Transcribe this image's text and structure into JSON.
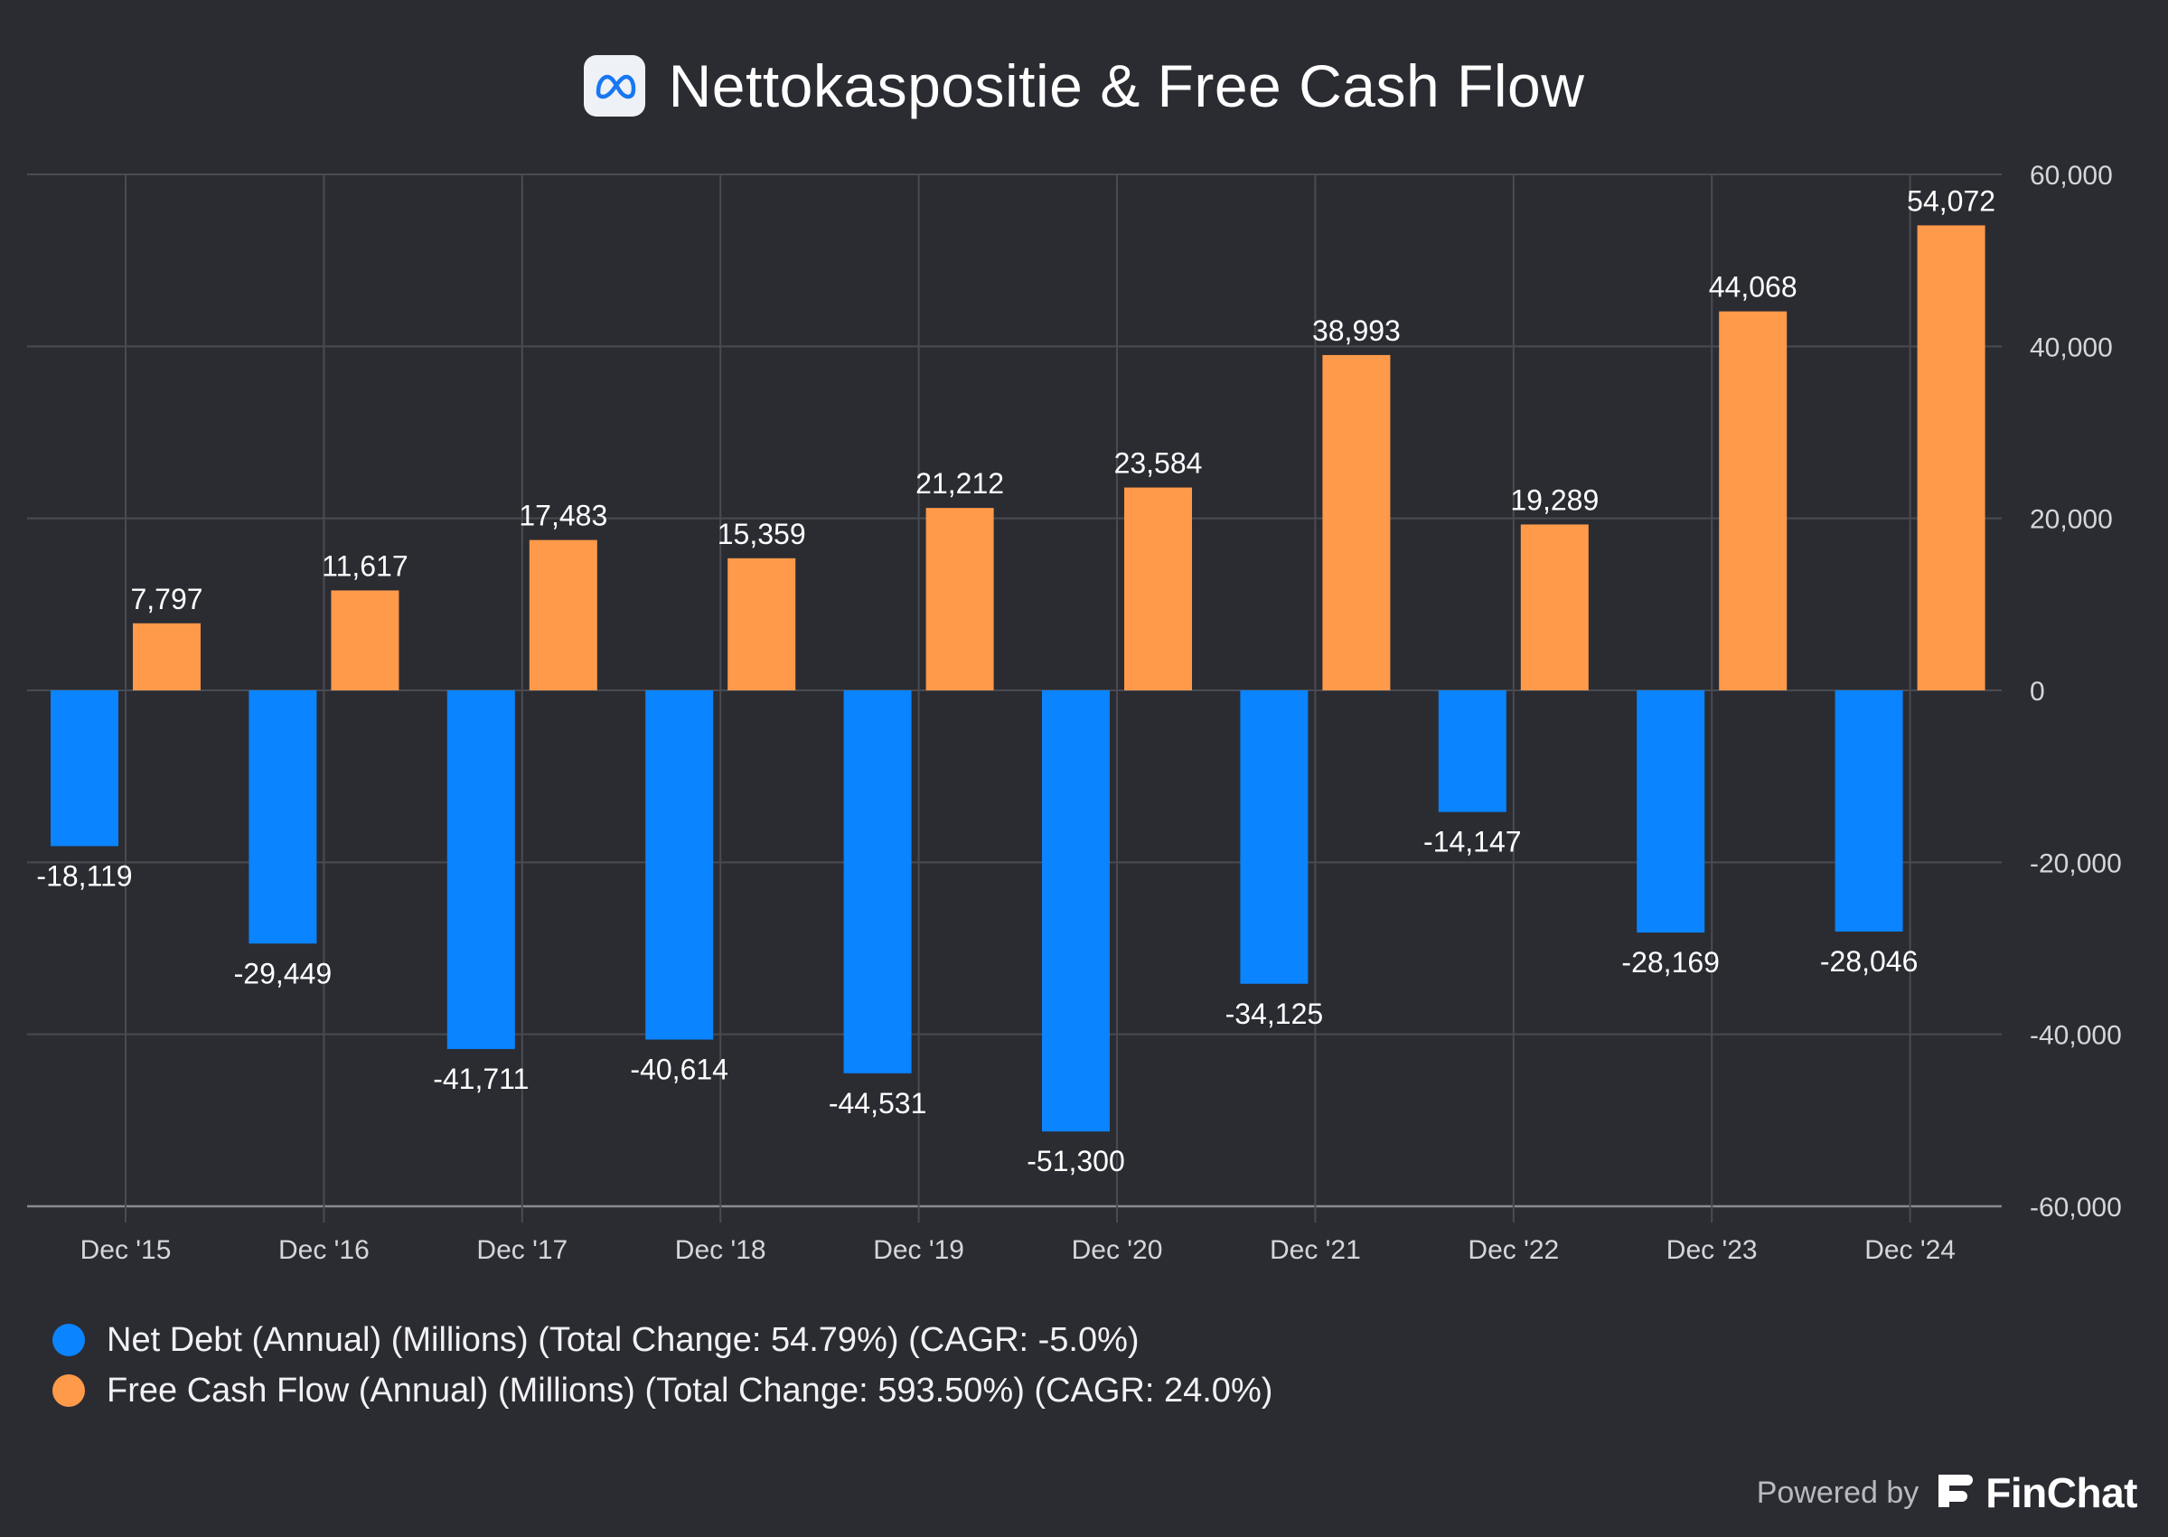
{
  "header": {
    "title": "Nettokaspositie & Free Cash Flow",
    "logo_icon": "meta-logo-icon"
  },
  "chart_data": {
    "type": "bar",
    "title": "Nettokaspositie & Free Cash Flow",
    "categories": [
      "Dec '15",
      "Dec '16",
      "Dec '17",
      "Dec '18",
      "Dec '19",
      "Dec '20",
      "Dec '21",
      "Dec '22",
      "Dec '23",
      "Dec '24"
    ],
    "series": [
      {
        "name": "Net Debt (Annual) (Millions) (Total Change: 54.79%) (CAGR: -5.0%)",
        "color": "#0a84ff",
        "values": [
          -18119,
          -29449,
          -41711,
          -40614,
          -44531,
          -51300,
          -34125,
          -14147,
          -28169,
          -28046
        ],
        "labels": [
          "-18,119",
          "-29,449",
          "-41,711",
          "-40,614",
          "-44,531",
          "-51,300",
          "-34,125",
          "-14,147",
          "-28,169",
          "-28,046"
        ]
      },
      {
        "name": "Free Cash Flow (Annual) (Millions) (Total Change: 593.50%) (CAGR: 24.0%)",
        "color": "#ff9a4a",
        "values": [
          7797,
          11617,
          17483,
          15359,
          21212,
          23584,
          38993,
          19289,
          44068,
          54072
        ],
        "labels": [
          "7,797",
          "11,617",
          "17,483",
          "15,359",
          "21,212",
          "23,584",
          "38,993",
          "19,289",
          "44,068",
          "54,072"
        ]
      }
    ],
    "yaxis": {
      "position": "right",
      "ylim": [
        -60000,
        60000
      ],
      "ticks": [
        60000,
        40000,
        20000,
        0,
        -20000,
        -40000,
        -60000
      ],
      "tick_labels": [
        "60,000",
        "40,000",
        "20,000",
        "0",
        "-20,000",
        "-40,000",
        "-60,000"
      ]
    },
    "grid": true,
    "legend_placement": "bottom-left"
  },
  "legend": {
    "items": [
      {
        "label": "Net Debt (Annual) (Millions) (Total Change: 54.79%) (CAGR: -5.0%)",
        "color": "#0a84ff"
      },
      {
        "label": "Free Cash Flow (Annual) (Millions) (Total Change: 593.50%) (CAGR: 24.0%)",
        "color": "#ff9a4a"
      }
    ]
  },
  "footer": {
    "powered_by": "Powered by",
    "brand": "FinChat",
    "brand_icon": "finchat-logo-icon"
  }
}
